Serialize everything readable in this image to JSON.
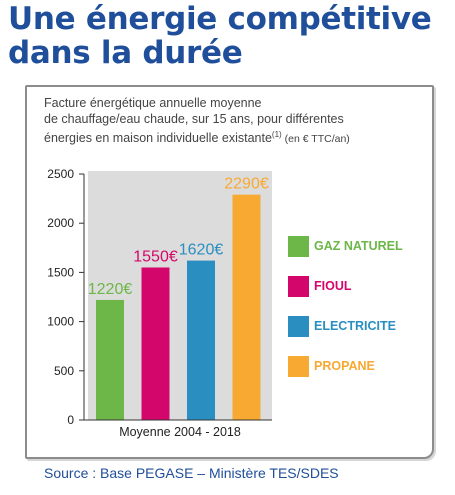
{
  "headline": {
    "line1": "Une énergie compétitive",
    "line2": "dans la durée"
  },
  "subtitle": {
    "line1": "Facture énergétique annuelle moyenne",
    "line2": "de chauffage/eau chaude, sur 15 ans, pour différentes",
    "line3_main": "énergies en maison individuelle existante",
    "line3_sup": "(1)",
    "line3_small": " (en € TTC/an)"
  },
  "source": "Source : Base PEGASE – Ministère TES/SDES",
  "chart_data": {
    "type": "bar",
    "categories": [
      "GAZ NATUREL",
      "FIOUL",
      "ELECTRICITE",
      "PROPANE"
    ],
    "values": [
      1220,
      1550,
      1620,
      2290
    ],
    "value_labels": [
      "1220€",
      "1550€",
      "1620€",
      "2290€"
    ],
    "colors": [
      "#6db648",
      "#d3076b",
      "#2a8fc0",
      "#f8a932"
    ],
    "xlabel": "Moyenne 2004 - 2018",
    "ylim": [
      0,
      2500
    ],
    "yticks": [
      0,
      500,
      1000,
      1500,
      2000,
      2500
    ],
    "grid": false,
    "legend": {
      "position": "right",
      "items": [
        {
          "label": "GAZ NATUREL",
          "color": "#6db648"
        },
        {
          "label": "FIOUL",
          "color": "#d3076b"
        },
        {
          "label": "ELECTRICITE",
          "color": "#2a8fc0"
        },
        {
          "label": "PROPANE",
          "color": "#f8a932"
        }
      ]
    },
    "plot_background": "#dcdcdc"
  }
}
